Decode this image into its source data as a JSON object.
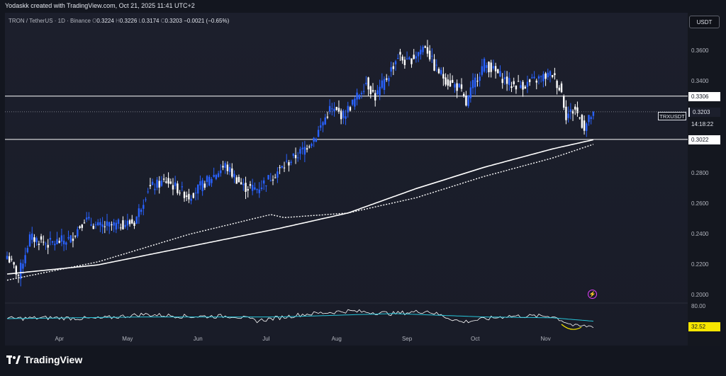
{
  "credit": "Yodaskk created with TradingView.com, Oct 21, 2025 11:41 UTC+2",
  "legend": {
    "symbol": "TRON / TetherUS · 1D · Binance",
    "open_label": "O",
    "open": "0.3224",
    "high_label": "H",
    "high": "0.3226",
    "low_label": "L",
    "low": "0.3174",
    "close_label": "C",
    "close": "0.3203",
    "change": "−0.0021 (−0.65%)"
  },
  "currency": "USDT",
  "symbol_tag": "TRXUSDT",
  "price_label": "0.3203",
  "countdown": "14:18:22",
  "brand": "TradingView",
  "colors": {
    "up": "#2962ff",
    "down": "#ffffff",
    "ma": "#ffffff",
    "rsi": "#ffffff",
    "rsi_ma": "#26c6da",
    "highlight": "#f7e600"
  },
  "chart_data": {
    "type": "candlestick",
    "title": "TRON / TetherUS · 1D · Binance",
    "y_ticks": [
      "0.3600",
      "0.3400",
      "0.2800",
      "0.2600",
      "0.2400",
      "0.2200",
      "0.2000"
    ],
    "ylim": [
      0.195,
      0.375
    ],
    "x_ticks": [
      "Apr",
      "May",
      "Jun",
      "Jul",
      "Aug",
      "Sep",
      "Oct",
      "Nov"
    ],
    "horizontal_levels": [
      {
        "value": 0.3306,
        "label": "0.3306"
      },
      {
        "value": 0.3022,
        "label": "0.3022"
      }
    ],
    "close_anchors": [
      {
        "day": 0,
        "close": 0.226
      },
      {
        "day": 5,
        "close": 0.213
      },
      {
        "day": 10,
        "close": 0.238
      },
      {
        "day": 18,
        "close": 0.234
      },
      {
        "day": 28,
        "close": 0.237
      },
      {
        "day": 34,
        "close": 0.25
      },
      {
        "day": 40,
        "close": 0.245
      },
      {
        "day": 48,
        "close": 0.246
      },
      {
        "day": 56,
        "close": 0.248
      },
      {
        "day": 62,
        "close": 0.27
      },
      {
        "day": 70,
        "close": 0.275
      },
      {
        "day": 80,
        "close": 0.265
      },
      {
        "day": 88,
        "close": 0.275
      },
      {
        "day": 96,
        "close": 0.285
      },
      {
        "day": 100,
        "close": 0.278
      },
      {
        "day": 104,
        "close": 0.271
      },
      {
        "day": 110,
        "close": 0.27
      },
      {
        "day": 114,
        "close": 0.275
      },
      {
        "day": 122,
        "close": 0.285
      },
      {
        "day": 130,
        "close": 0.295
      },
      {
        "day": 136,
        "close": 0.305
      },
      {
        "day": 142,
        "close": 0.322
      },
      {
        "day": 148,
        "close": 0.318
      },
      {
        "day": 154,
        "close": 0.33
      },
      {
        "day": 158,
        "close": 0.34
      },
      {
        "day": 162,
        "close": 0.33
      },
      {
        "day": 168,
        "close": 0.345
      },
      {
        "day": 172,
        "close": 0.357
      },
      {
        "day": 176,
        "close": 0.352
      },
      {
        "day": 180,
        "close": 0.358
      },
      {
        "day": 184,
        "close": 0.364
      },
      {
        "day": 188,
        "close": 0.35
      },
      {
        "day": 194,
        "close": 0.34
      },
      {
        "day": 199,
        "close": 0.336
      },
      {
        "day": 202,
        "close": 0.325
      },
      {
        "day": 205,
        "close": 0.338
      },
      {
        "day": 210,
        "close": 0.352
      },
      {
        "day": 216,
        "close": 0.345
      },
      {
        "day": 222,
        "close": 0.338
      },
      {
        "day": 228,
        "close": 0.338
      },
      {
        "day": 234,
        "close": 0.342
      },
      {
        "day": 240,
        "close": 0.345
      },
      {
        "day": 244,
        "close": 0.333
      },
      {
        "day": 246,
        "close": 0.318
      },
      {
        "day": 250,
        "close": 0.322
      },
      {
        "day": 254,
        "close": 0.31
      },
      {
        "day": 258,
        "close": 0.3203
      }
    ],
    "ma_solid_anchors": [
      {
        "day": 0,
        "value": 0.214
      },
      {
        "day": 40,
        "value": 0.22
      },
      {
        "day": 80,
        "value": 0.232
      },
      {
        "day": 120,
        "value": 0.244
      },
      {
        "day": 150,
        "value": 0.254
      },
      {
        "day": 180,
        "value": 0.27
      },
      {
        "day": 210,
        "value": 0.284
      },
      {
        "day": 240,
        "value": 0.296
      },
      {
        "day": 258,
        "value": 0.302
      }
    ],
    "ma_dotted_anchors": [
      {
        "day": 0,
        "value": 0.21
      },
      {
        "day": 40,
        "value": 0.222
      },
      {
        "day": 80,
        "value": 0.24
      },
      {
        "day": 116,
        "value": 0.253
      },
      {
        "day": 122,
        "value": 0.251
      },
      {
        "day": 150,
        "value": 0.254
      },
      {
        "day": 180,
        "value": 0.264
      },
      {
        "day": 210,
        "value": 0.278
      },
      {
        "day": 240,
        "value": 0.29
      },
      {
        "day": 258,
        "value": 0.299
      }
    ],
    "rsi": {
      "upper_label": "80.00",
      "value_label": "32.52",
      "anchors": [
        {
          "day": 0,
          "value": 50
        },
        {
          "day": 20,
          "value": 52
        },
        {
          "day": 40,
          "value": 50
        },
        {
          "day": 60,
          "value": 60
        },
        {
          "day": 80,
          "value": 55
        },
        {
          "day": 100,
          "value": 56
        },
        {
          "day": 110,
          "value": 45
        },
        {
          "day": 130,
          "value": 60
        },
        {
          "day": 150,
          "value": 68
        },
        {
          "day": 170,
          "value": 62
        },
        {
          "day": 185,
          "value": 68
        },
        {
          "day": 200,
          "value": 42
        },
        {
          "day": 220,
          "value": 56
        },
        {
          "day": 240,
          "value": 56
        },
        {
          "day": 250,
          "value": 32
        },
        {
          "day": 258,
          "value": 32.52
        }
      ],
      "ma_anchors": [
        {
          "day": 0,
          "value": 50
        },
        {
          "day": 60,
          "value": 54
        },
        {
          "day": 120,
          "value": 54
        },
        {
          "day": 170,
          "value": 62
        },
        {
          "day": 210,
          "value": 54
        },
        {
          "day": 240,
          "value": 52
        },
        {
          "day": 258,
          "value": 44
        }
      ]
    }
  }
}
